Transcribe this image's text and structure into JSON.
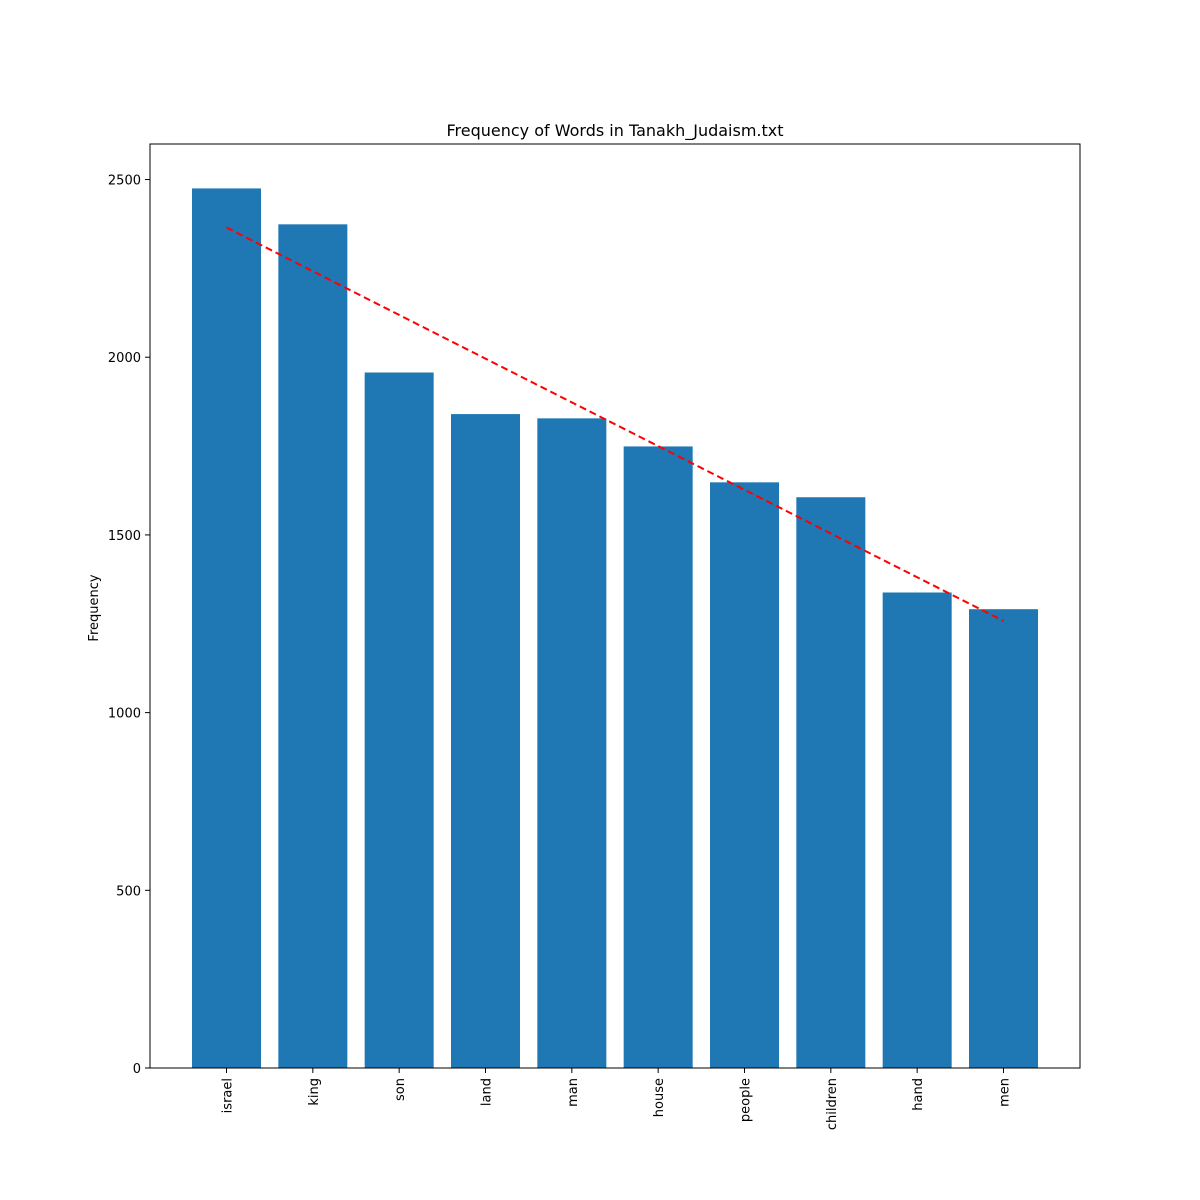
{
  "chart_data": {
    "type": "bar",
    "title": "Frequency of Words in Tanakh_Judaism.txt",
    "xlabel": "",
    "ylabel": "Frequency",
    "categories": [
      "israel",
      "king",
      "son",
      "land",
      "man",
      "house",
      "people",
      "children",
      "hand",
      "men"
    ],
    "values": [
      2475,
      2374,
      1957,
      1840,
      1828,
      1749,
      1648,
      1606,
      1338,
      1291
    ],
    "ylim": [
      0,
      2600
    ],
    "yticks": [
      0,
      500,
      1000,
      1500,
      2000,
      2500
    ],
    "trendline": {
      "style": "dashed",
      "color": "#ff0000",
      "start": 2365,
      "end": 1258
    },
    "bar_color": "#1f77b4",
    "grid": false,
    "legend": "none"
  }
}
